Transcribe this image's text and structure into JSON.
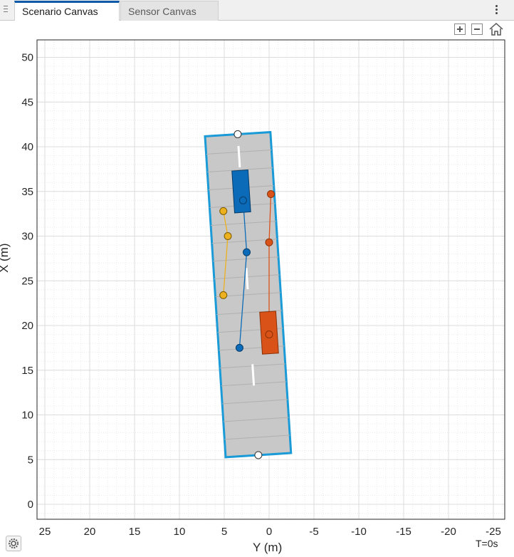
{
  "tabs": [
    {
      "label": "Scenario Canvas",
      "active": true
    },
    {
      "label": "Sensor Canvas",
      "active": false
    }
  ],
  "toolbar": {
    "zoom_in": "zoom-in-icon",
    "zoom_out": "zoom-out-icon",
    "home": "home-icon"
  },
  "axes": {
    "xlabel": "Y (m)",
    "ylabel": "X (m)",
    "y_ticks": [
      "50",
      "45",
      "40",
      "35",
      "30",
      "25",
      "20",
      "15",
      "10",
      "5",
      "0"
    ],
    "x_ticks": [
      "25",
      "20",
      "15",
      "10",
      "5",
      "0",
      "-5",
      "-10",
      "-15",
      "-20",
      "-25"
    ],
    "ylim": [
      -1,
      52
    ],
    "xlim": [
      26,
      -26
    ],
    "grid": true
  },
  "time_label": "T=0s",
  "colors": {
    "road_fill": "#c8c8c8",
    "road_border": "#1a9ad6",
    "blue_vehicle": "#0b6bb8",
    "orange_vehicle": "#d95319",
    "yellow_actor": "#edb120"
  },
  "scenario": {
    "road_centers": [
      [
        5.5,
        1.2
      ],
      [
        41.4,
        3.5
      ]
    ],
    "blue_path": [
      [
        17.5,
        3.3
      ],
      [
        28.2,
        2.5
      ],
      [
        34.0,
        2.9
      ]
    ],
    "orange_path": [
      [
        19.0,
        0.0
      ],
      [
        29.3,
        0.0
      ],
      [
        34.7,
        -0.2
      ]
    ],
    "yellow_path": [
      [
        23.4,
        5.1
      ],
      [
        30.0,
        4.6
      ],
      [
        32.8,
        5.1
      ]
    ],
    "blue_car": {
      "center": [
        35.0,
        3.1
      ],
      "length": 4.7,
      "width": 1.8
    },
    "orange_car": {
      "center": [
        19.2,
        0.0
      ],
      "length": 4.7,
      "width": 1.8
    }
  },
  "settings_icon": "gear-icon"
}
